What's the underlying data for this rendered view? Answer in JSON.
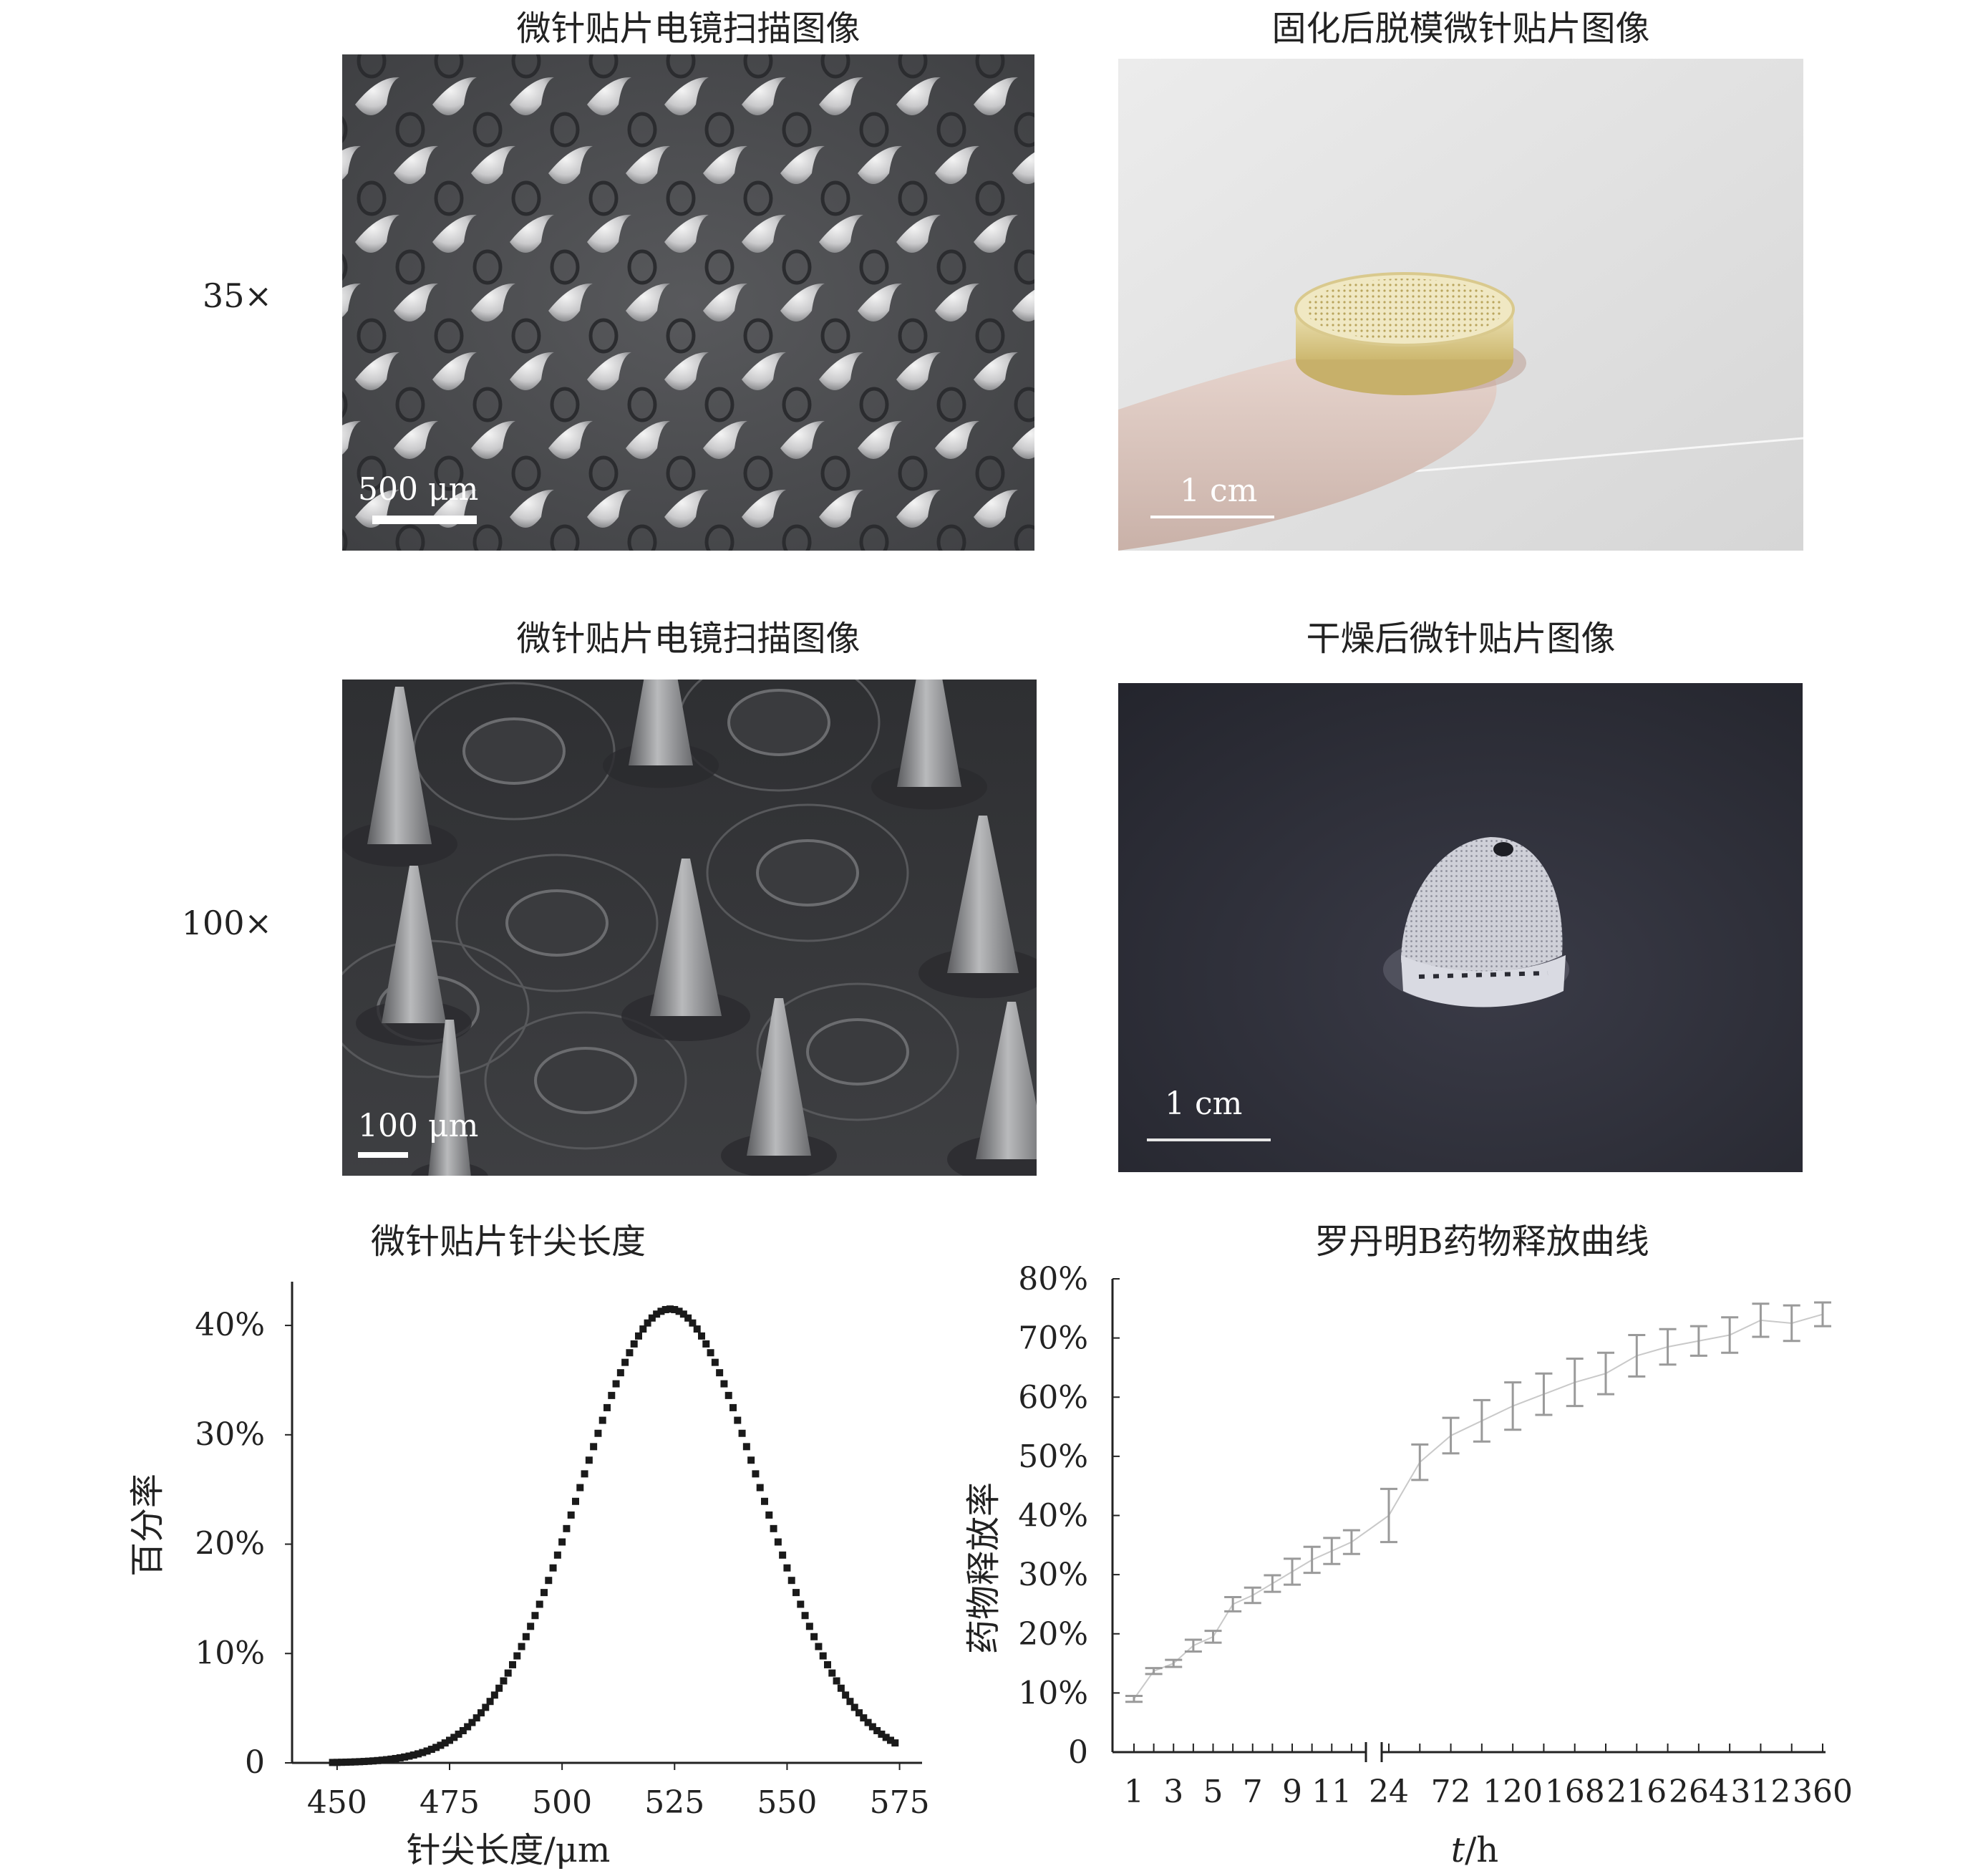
{
  "row_labels": {
    "row1": "35×",
    "row2": "100×"
  },
  "panels": {
    "sem35": {
      "title": "微针贴片电镜扫描图像",
      "scale": "500 μm"
    },
    "demold": {
      "title": "固化后脱模微针贴片图像",
      "scale": "1 cm"
    },
    "sem100": {
      "title": "微针贴片电镜扫描图像",
      "scale": "100 μm"
    },
    "dried": {
      "title": "干燥后微针贴片图像",
      "scale": "1 cm"
    }
  },
  "chart_data": [
    {
      "type": "scatter",
      "title": "微针贴片针尖长度",
      "xlabel": "针尖长度/μm",
      "ylabel": "百分率",
      "xticks": [
        "450",
        "475",
        "500",
        "525",
        "550",
        "575"
      ],
      "yticks": [
        "0",
        "10%",
        "20%",
        "30%",
        "40%"
      ],
      "xlim": [
        440,
        580
      ],
      "ylim": [
        0,
        0.44
      ],
      "grid": false,
      "series": [
        {
          "mean": 524,
          "sd": 20,
          "peak": 0.415,
          "x_range": [
            449,
            574
          ],
          "marker_color": "#1a1a1a"
        }
      ]
    },
    {
      "type": "line",
      "title": "罗丹明B药物释放曲线",
      "xlabel": "t/h",
      "ylabel": "药物释放率",
      "xticks": [
        "1",
        "3",
        "5",
        "7",
        "9",
        "11",
        "24",
        "72",
        "120",
        "168",
        "216",
        "264",
        "312",
        "360"
      ],
      "yticks": [
        "0",
        "10%",
        "20%",
        "30%",
        "40%",
        "50%",
        "60%",
        "70%",
        "80%"
      ],
      "ylim": [
        0,
        0.8
      ],
      "axis_break": "between 12 and 24",
      "line_color": "#c9c9c9",
      "errorbar_color": "#9a9a9a",
      "points": [
        {
          "t": 1,
          "y": 0.09,
          "err": 0.005
        },
        {
          "t": 2,
          "y": 0.137,
          "err": 0.005
        },
        {
          "t": 3,
          "y": 0.15,
          "err": 0.006
        },
        {
          "t": 4,
          "y": 0.18,
          "err": 0.01
        },
        {
          "t": 5,
          "y": 0.195,
          "err": 0.01
        },
        {
          "t": 6,
          "y": 0.25,
          "err": 0.012
        },
        {
          "t": 7,
          "y": 0.265,
          "err": 0.013
        },
        {
          "t": 8,
          "y": 0.285,
          "err": 0.014
        },
        {
          "t": 9,
          "y": 0.305,
          "err": 0.022
        },
        {
          "t": 10,
          "y": 0.325,
          "err": 0.022
        },
        {
          "t": 11,
          "y": 0.34,
          "err": 0.022
        },
        {
          "t": 12,
          "y": 0.355,
          "err": 0.02
        },
        {
          "t": 24,
          "y": 0.4,
          "err": 0.045
        },
        {
          "t": 48,
          "y": 0.49,
          "err": 0.03
        },
        {
          "t": 72,
          "y": 0.535,
          "err": 0.03
        },
        {
          "t": 96,
          "y": 0.56,
          "err": 0.035
        },
        {
          "t": 120,
          "y": 0.585,
          "err": 0.04
        },
        {
          "t": 144,
          "y": 0.605,
          "err": 0.035
        },
        {
          "t": 168,
          "y": 0.625,
          "err": 0.04
        },
        {
          "t": 192,
          "y": 0.64,
          "err": 0.035
        },
        {
          "t": 216,
          "y": 0.67,
          "err": 0.035
        },
        {
          "t": 240,
          "y": 0.685,
          "err": 0.03
        },
        {
          "t": 264,
          "y": 0.695,
          "err": 0.025
        },
        {
          "t": 288,
          "y": 0.705,
          "err": 0.03
        },
        {
          "t": 312,
          "y": 0.73,
          "err": 0.028
        },
        {
          "t": 336,
          "y": 0.725,
          "err": 0.03
        },
        {
          "t": 360,
          "y": 0.74,
          "err": 0.02
        }
      ]
    }
  ]
}
